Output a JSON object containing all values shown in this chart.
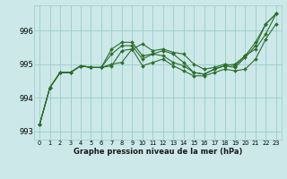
{
  "x": [
    0,
    1,
    2,
    3,
    4,
    5,
    6,
    7,
    8,
    9,
    10,
    11,
    12,
    13,
    14,
    15,
    16,
    17,
    18,
    19,
    20,
    21,
    22,
    23
  ],
  "line1": [
    993.2,
    994.3,
    994.75,
    994.75,
    994.95,
    994.9,
    994.9,
    994.95,
    995.4,
    995.45,
    994.95,
    995.05,
    995.15,
    994.95,
    994.8,
    994.65,
    994.65,
    994.75,
    994.85,
    994.8,
    994.85,
    995.15,
    995.75,
    996.2
  ],
  "line2": [
    993.2,
    994.3,
    994.75,
    994.75,
    994.95,
    994.9,
    994.9,
    995.3,
    995.55,
    995.55,
    995.15,
    995.3,
    995.25,
    995.05,
    994.95,
    994.75,
    994.7,
    994.85,
    994.95,
    994.9,
    995.2,
    995.55,
    996.2,
    996.5
  ],
  "line3": [
    993.2,
    994.3,
    994.75,
    994.75,
    994.95,
    994.9,
    994.9,
    995.45,
    995.65,
    995.65,
    995.25,
    995.3,
    995.4,
    995.3,
    995.05,
    994.75,
    994.7,
    994.85,
    994.95,
    995.0,
    995.25,
    995.65,
    996.2,
    996.5
  ],
  "line4": [
    993.2,
    994.3,
    994.75,
    994.75,
    994.95,
    994.9,
    994.9,
    995.0,
    995.05,
    995.45,
    995.6,
    995.4,
    995.45,
    995.35,
    995.3,
    995.0,
    994.85,
    994.9,
    995.0,
    994.95,
    995.25,
    995.45,
    995.9,
    996.5
  ],
  "bg_color": "#cce8e8",
  "grid_color": "#99cccc",
  "line_color": "#2d6e2d",
  "marker_color": "#2d6e2d",
  "xlabel": "Graphe pression niveau de la mer (hPa)",
  "ylim": [
    992.75,
    996.75
  ],
  "yticks": [
    993,
    994,
    995,
    996
  ],
  "xticks": [
    0,
    1,
    2,
    3,
    4,
    5,
    6,
    7,
    8,
    9,
    10,
    11,
    12,
    13,
    14,
    15,
    16,
    17,
    18,
    19,
    20,
    21,
    22,
    23
  ]
}
